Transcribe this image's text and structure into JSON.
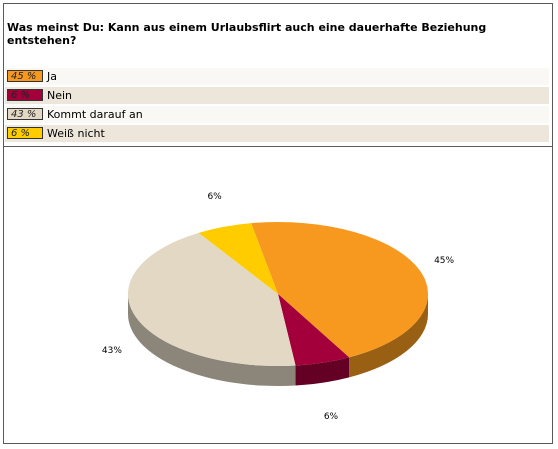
{
  "question": "Was meinst Du: Kann aus einem Urlaubsflirt auch eine dauerhafte Beziehung entstehen?",
  "options": [
    {
      "percent_label": "45 %",
      "label": "Ja",
      "color": "#f7991f"
    },
    {
      "percent_label": "6 %",
      "label": "Nein",
      "color": "#a3003b"
    },
    {
      "percent_label": "43 %",
      "label": "Kommt darauf an",
      "color": "#e2d8c4"
    },
    {
      "percent_label": "6 %",
      "label": "Weiß nicht",
      "color": "#ffcc00"
    }
  ],
  "chart_data": {
    "type": "pie",
    "categories": [
      "Ja",
      "Nein",
      "Kommt darauf an",
      "Weiß nicht"
    ],
    "values": [
      45,
      6,
      43,
      6
    ],
    "data_labels": [
      "45%",
      "6%",
      "43%",
      "6%"
    ],
    "colors": [
      "#f7991f",
      "#a3003b",
      "#e2d8c4",
      "#ffcc00"
    ],
    "style": "3d"
  }
}
